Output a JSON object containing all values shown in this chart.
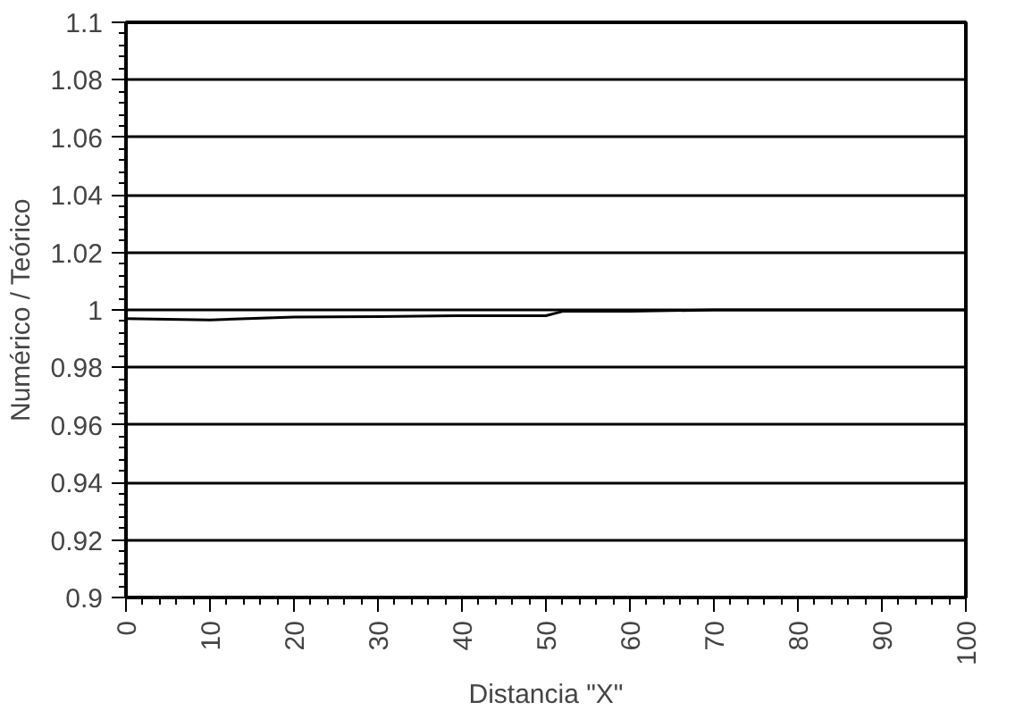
{
  "chart_data": {
    "type": "line",
    "xlabel": "Distancia \"X\"",
    "ylabel": "Numérico / Teórico",
    "x": [
      0,
      10,
      20,
      30,
      40,
      50,
      52,
      60,
      70,
      80,
      90,
      100
    ],
    "series": [
      {
        "color": "#000000",
        "values": [
          0.997,
          0.9965,
          0.9975,
          0.9977,
          0.998,
          0.998,
          0.9995,
          0.9995,
          1.0,
          1.0,
          1.0,
          1.0
        ]
      }
    ],
    "xlim": [
      0,
      100
    ],
    "xticks": [
      0,
      10,
      20,
      30,
      40,
      50,
      60,
      70,
      80,
      90,
      100
    ],
    "ylim": [
      0.9,
      1.1
    ],
    "yticks": [
      {
        "value": 0.9,
        "label": "0.9"
      },
      0.92,
      0.94,
      0.96,
      0.98,
      {
        "value": 1,
        "label": "1"
      },
      1.02,
      1.04,
      1.06,
      1.08,
      {
        "value": 1.1,
        "label": "1.1"
      }
    ],
    "grid": "y",
    "marker": "none",
    "line_style": "solid"
  }
}
